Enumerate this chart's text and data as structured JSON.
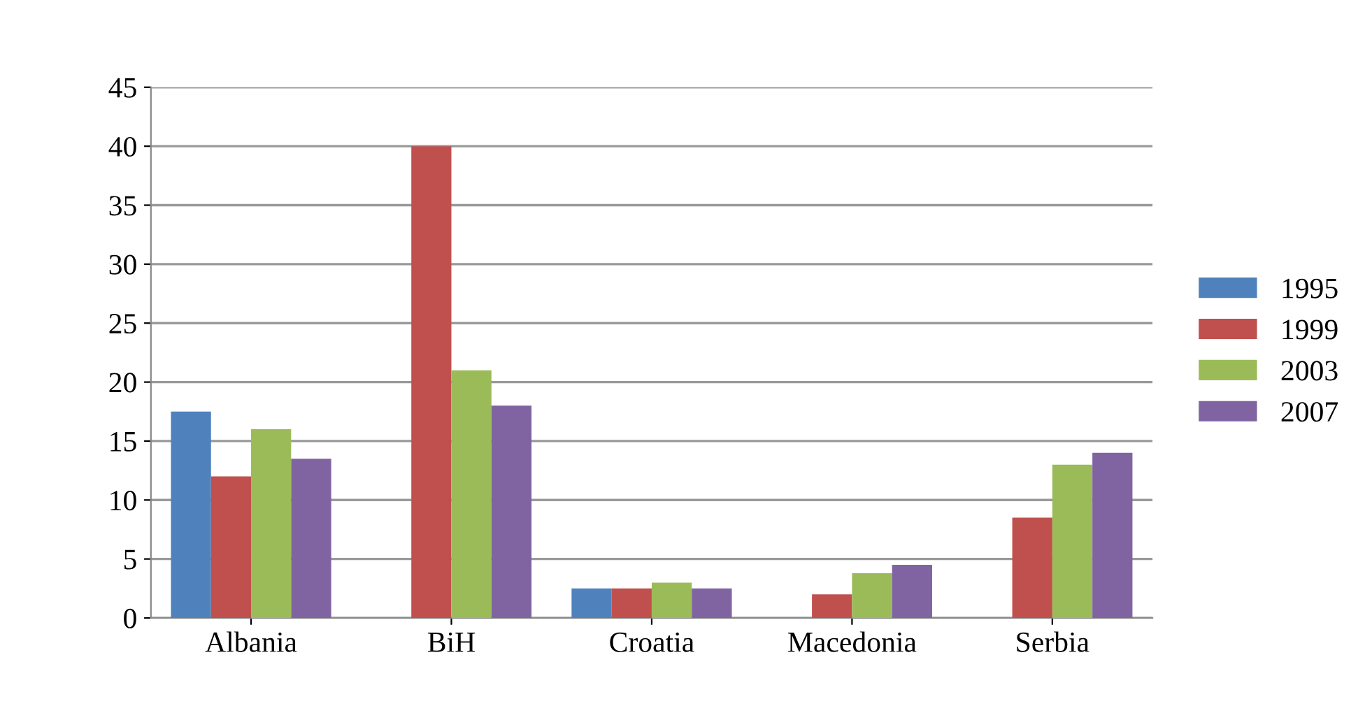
{
  "chart_data": {
    "type": "bar",
    "categories": [
      "Albania",
      "BiH",
      "Croatia",
      "Macedonia",
      "Serbia"
    ],
    "series": [
      {
        "name": "1995",
        "color": "#4f81bd",
        "values": [
          17.5,
          null,
          2.5,
          null,
          null
        ]
      },
      {
        "name": "1999",
        "color": "#c0504d",
        "values": [
          12,
          40,
          2.5,
          2,
          8.5
        ]
      },
      {
        "name": "2003",
        "color": "#9bbb59",
        "values": [
          16,
          21,
          3,
          3.8,
          13
        ]
      },
      {
        "name": "2007",
        "color": "#8064a2",
        "values": [
          13.5,
          18,
          2.5,
          4.5,
          14
        ]
      }
    ],
    "ylim": [
      0,
      45
    ],
    "yticks": [
      0,
      5,
      10,
      15,
      20,
      25,
      30,
      35,
      40,
      45
    ],
    "grid": "y",
    "legend": "right"
  }
}
